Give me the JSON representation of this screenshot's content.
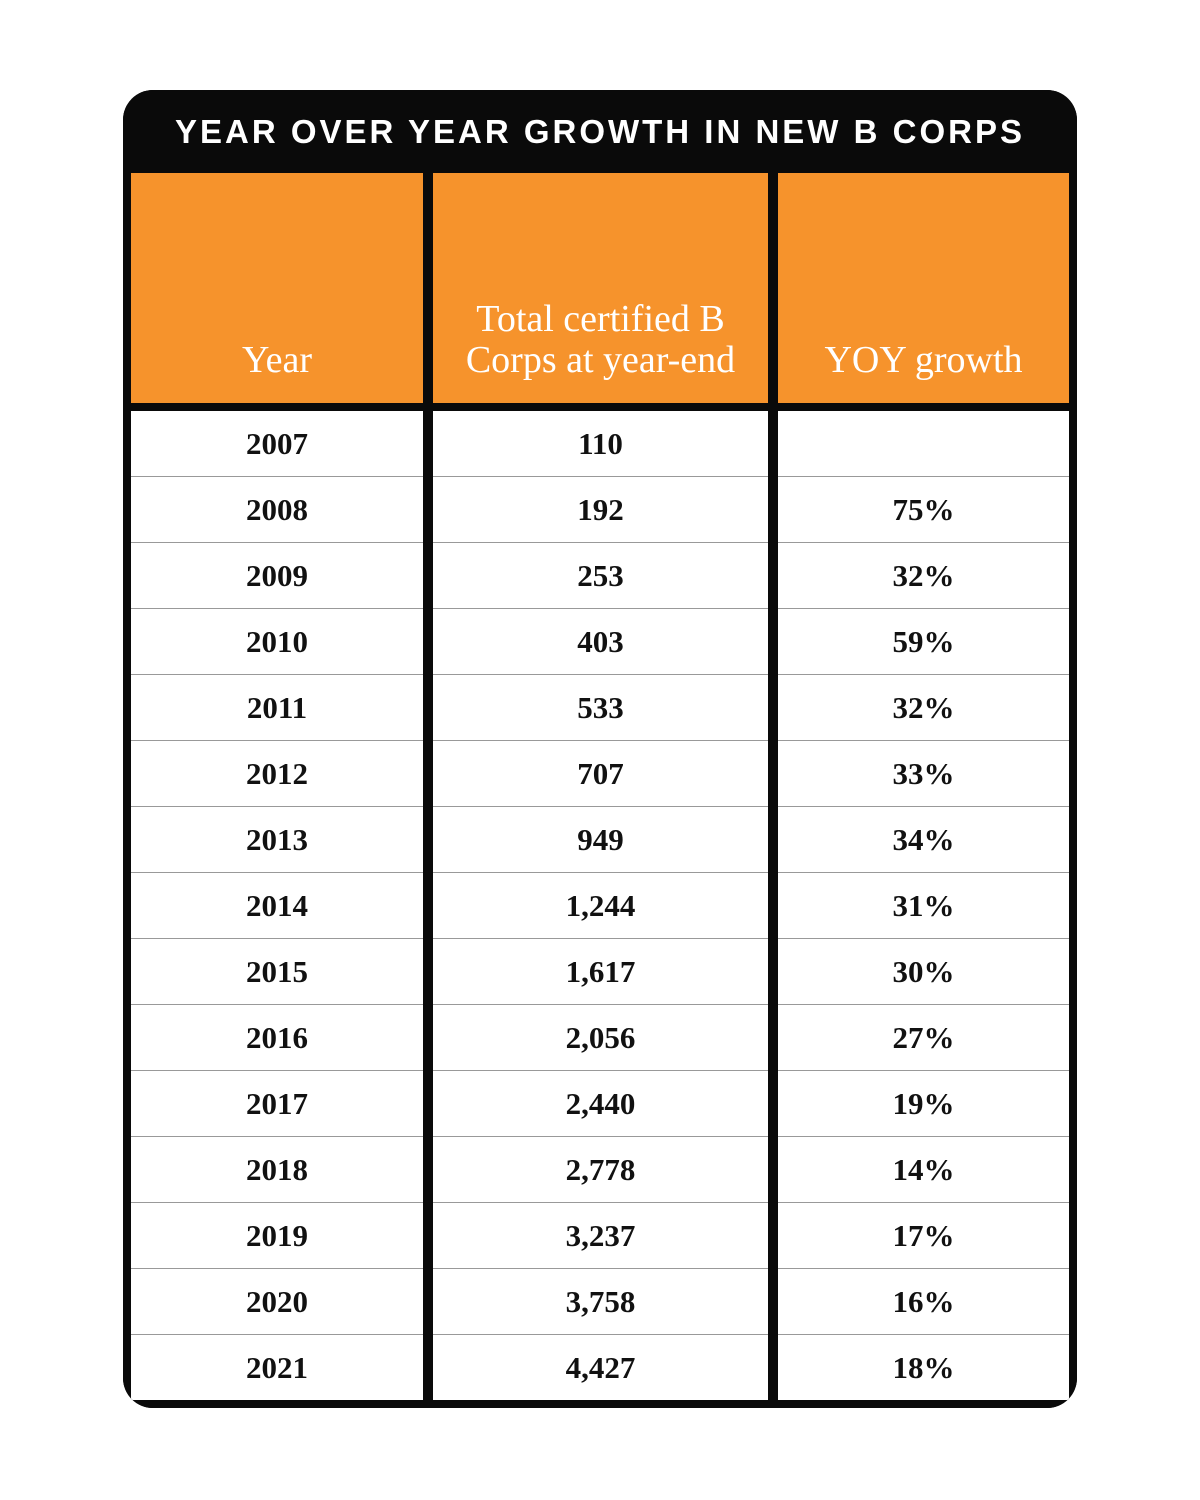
{
  "chart_data": {
    "type": "table",
    "title": "YEAR OVER YEAR GROWTH IN NEW B CORPS",
    "columns": [
      "Year",
      "Total certified B Corps at year-end",
      "YOY growth"
    ],
    "rows": [
      [
        "2007",
        "110",
        ""
      ],
      [
        "2008",
        "192",
        "75%"
      ],
      [
        "2009",
        "253",
        "32%"
      ],
      [
        "2010",
        "403",
        "59%"
      ],
      [
        "2011",
        "533",
        "32%"
      ],
      [
        "2012",
        "707",
        "33%"
      ],
      [
        "2013",
        "949",
        "34%"
      ],
      [
        "2014",
        "1,244",
        "31%"
      ],
      [
        "2015",
        "1,617",
        "30%"
      ],
      [
        "2016",
        "2,056",
        "27%"
      ],
      [
        "2017",
        "2,440",
        "19%"
      ],
      [
        "2018",
        "2,778",
        "14%"
      ],
      [
        "2019",
        "3,237",
        "17%"
      ],
      [
        "2020",
        "3,758",
        "16%"
      ],
      [
        "2021",
        "4,427",
        "18%"
      ]
    ]
  },
  "table": {
    "title": "YEAR OVER YEAR GROWTH IN NEW B CORPS",
    "columns": {
      "year": "Year",
      "total": "Total certified B Corps at year-end",
      "yoy": "YOY growth"
    },
    "rows": [
      {
        "year": "2007",
        "total": "110",
        "yoy": ""
      },
      {
        "year": "2008",
        "total": "192",
        "yoy": "75%"
      },
      {
        "year": "2009",
        "total": "253",
        "yoy": "32%"
      },
      {
        "year": "2010",
        "total": "403",
        "yoy": "59%"
      },
      {
        "year": "2011",
        "total": "533",
        "yoy": "32%"
      },
      {
        "year": "2012",
        "total": "707",
        "yoy": "33%"
      },
      {
        "year": "2013",
        "total": "949",
        "yoy": "34%"
      },
      {
        "year": "2014",
        "total": "1,244",
        "yoy": "31%"
      },
      {
        "year": "2015",
        "total": "1,617",
        "yoy": "30%"
      },
      {
        "year": "2016",
        "total": "2,056",
        "yoy": "27%"
      },
      {
        "year": "2017",
        "total": "2,440",
        "yoy": "19%"
      },
      {
        "year": "2018",
        "total": "2,778",
        "yoy": "14%"
      },
      {
        "year": "2019",
        "total": "3,237",
        "yoy": "17%"
      },
      {
        "year": "2020",
        "total": "3,758",
        "yoy": "16%"
      },
      {
        "year": "2021",
        "total": "4,427",
        "yoy": "18%"
      }
    ]
  },
  "colors": {
    "orange": "#F6932C",
    "header_black": "#0A0A0A",
    "row_line": "#999999",
    "cell_text": "#111111",
    "title_text": "#FFFFFF"
  }
}
